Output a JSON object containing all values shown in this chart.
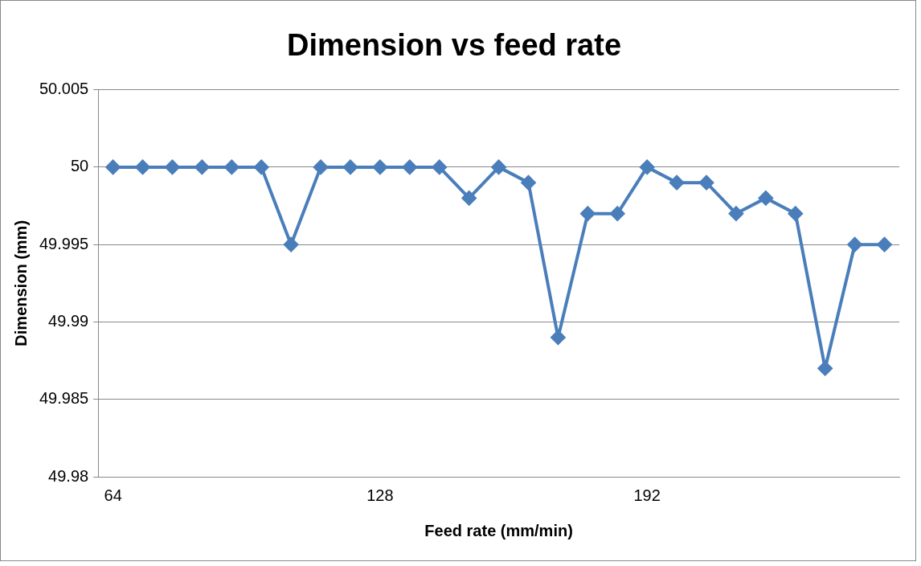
{
  "chart_data": {
    "type": "line",
    "title": "Dimension vs feed rate",
    "xlabel": "Feed rate (mm/min)",
    "ylabel": "Dimension (mm)",
    "categories": [
      "64",
      null,
      null,
      null,
      null,
      null,
      null,
      null,
      null,
      "128",
      null,
      null,
      null,
      null,
      null,
      null,
      null,
      null,
      "192",
      null,
      null,
      null,
      null,
      null,
      null,
      null,
      null
    ],
    "series": [
      {
        "color": "#4a7ebb",
        "values": [
          50,
          50,
          50,
          50,
          50,
          50,
          49.995,
          50,
          50,
          50,
          50,
          50,
          49.998,
          50,
          49.999,
          49.989,
          49.997,
          49.997,
          50,
          49.999,
          49.999,
          49.997,
          49.998,
          49.997,
          49.987,
          49.995,
          49.995
        ]
      }
    ],
    "ylim": [
      49.98,
      50.005
    ],
    "yticks": [
      49.98,
      49.985,
      49.99,
      49.995,
      50,
      50.005
    ],
    "grid": "y",
    "legend": false,
    "marker": "diamond",
    "line_style": "solid"
  }
}
